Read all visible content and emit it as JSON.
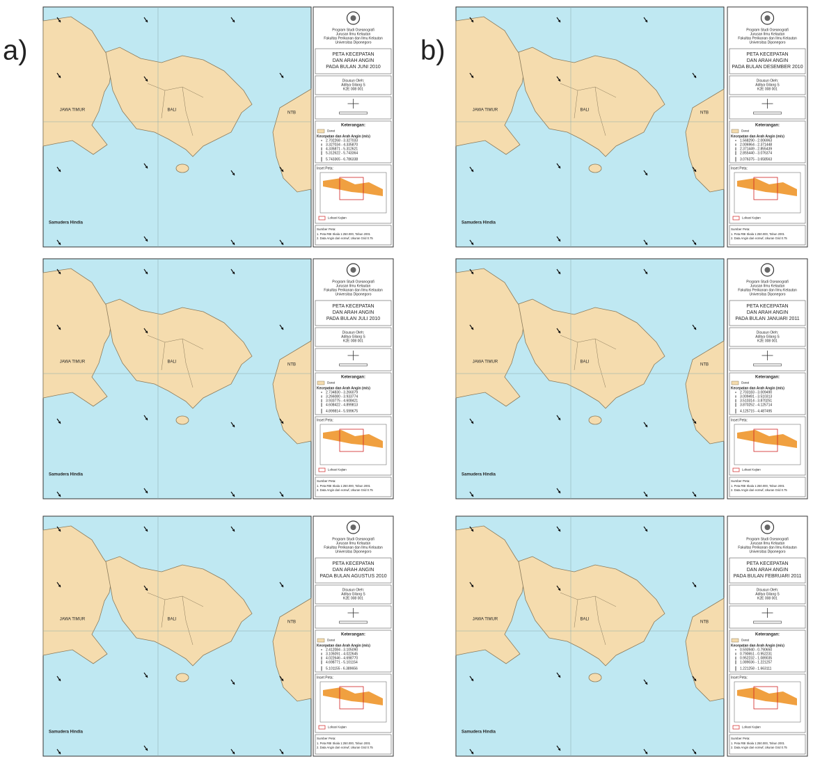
{
  "column_labels": [
    "a)",
    "b)"
  ],
  "common": {
    "institution": [
      "Program Studi Oseanografi",
      "Jurusan Ilmu Kelautan",
      "Fakultas Perikanan dan Ilmu Kelautan",
      "Universitas Diponegoro"
    ],
    "author": [
      "Disusun Oleh:",
      "Aditya Gilang S",
      "K2E 008 001"
    ],
    "legend_title": "Keterangan:",
    "land_label": "Darat",
    "wind_title": "Kecepatan dan Arah Angin (m/s)",
    "inset_title": "Inset Peta:",
    "study_area": "Lokasi Kajian",
    "source_title": "Sumber Peta:",
    "sources": [
      "1. Peta RBI Skala 1:250.000, Tahun 2001",
      "2. Data Angin dari ecmwf, Ukuran Grid 0.75"
    ],
    "places": {
      "java": "JAWA TIMUR",
      "bali": "BALI",
      "ntb": "NTB",
      "ocean": "Samudera Hindia"
    }
  },
  "panels": [
    {
      "title": [
        "PETA KECEPATAN",
        "DAN ARAH ANGIN",
        "PADA BULAN JUNI 2010"
      ],
      "ranges": [
        "2.702268 - 3.327033",
        "3.327034 - 4.335870",
        "4.335871 - 5.312621",
        "5.312622 - 5.743364",
        "5.743365 - 6.786338"
      ]
    },
    {
      "title": [
        "PETA KECEPATAN",
        "DAN ARAH ANGIN",
        "PADA BULAN JULI 2010"
      ],
      "ranges": [
        "2.734830 - 3.266079",
        "3.266080 - 3.933774",
        "3.933775 - 4.608421",
        "4.608422 - 4.899813",
        "4.899814 - 5.599675"
      ]
    },
    {
      "title": [
        "PETA KECEPATAN",
        "DAN ARAH ANGIN",
        "PADA BULAN AGUSTUS 2010"
      ],
      "ranges": [
        "2.412084 - 3.105090",
        "3.105091 - 4.022645",
        "4.022646 - 4.698770",
        "4.698771 - 5.101154",
        "5.101155 - 6.389656"
      ]
    },
    {
      "title": [
        "PETA KECEPATAN",
        "DAN ARAH ANGIN",
        "PADA BULAN DESEMBER 2010"
      ],
      "ranges": [
        "1.568290 - 2.006963",
        "2.006964 - 2.371448",
        "2.371449 - 2.855439",
        "2.855440 - 3.076374",
        "3.076375 - 3.658563"
      ]
    },
    {
      "title": [
        "PETA KECEPATAN",
        "DAN ARAH ANGIN",
        "PADA BULAN JANUARI 2011"
      ],
      "ranges": [
        "2.703183 - 3.009490",
        "3.009491 - 3.510313",
        "3.510314 - 3.870251",
        "3.870252 - 4.125714",
        "4.125715 - 4.487495"
      ]
    },
    {
      "title": [
        "PETA KECEPATAN",
        "DAN ARAH ANGIN",
        "PADA BULAN FEBRUARI 2011"
      ],
      "ranges": [
        "0.593940 - 0.790650",
        "0.790651 - 0.952231",
        "0.952232 - 1.089035",
        "1.089036 - 1.221257",
        "1.221258 - 1.663111"
      ]
    }
  ]
}
